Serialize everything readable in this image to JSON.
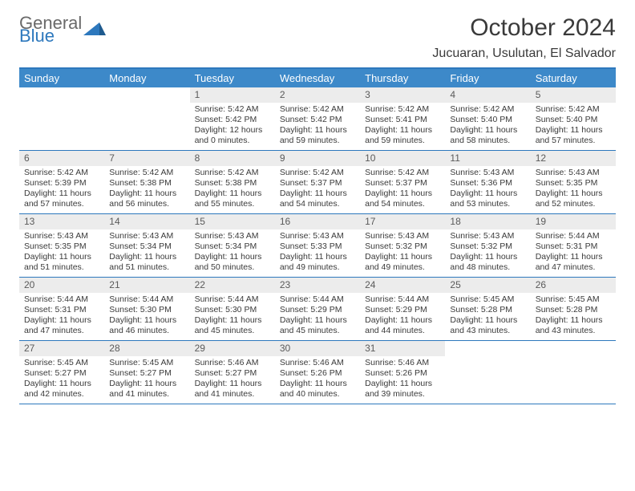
{
  "brand": {
    "top": "General",
    "bottom": "Blue"
  },
  "title": "October 2024",
  "location": "Jucuaran, Usulutan, El Salvador",
  "colors": {
    "header_bar": "#3d89c9",
    "accent": "#2d78bd",
    "day_num_bg": "#ececec",
    "text": "#3a3a3a",
    "logo_gray": "#6a6a6a"
  },
  "weekdays": [
    "Sunday",
    "Monday",
    "Tuesday",
    "Wednesday",
    "Thursday",
    "Friday",
    "Saturday"
  ],
  "weeks": [
    [
      {
        "n": "",
        "sr": "",
        "ss": "",
        "d1": "",
        "d2": ""
      },
      {
        "n": "",
        "sr": "",
        "ss": "",
        "d1": "",
        "d2": ""
      },
      {
        "n": "1",
        "sr": "Sunrise: 5:42 AM",
        "ss": "Sunset: 5:42 PM",
        "d1": "Daylight: 12 hours",
        "d2": "and 0 minutes."
      },
      {
        "n": "2",
        "sr": "Sunrise: 5:42 AM",
        "ss": "Sunset: 5:42 PM",
        "d1": "Daylight: 11 hours",
        "d2": "and 59 minutes."
      },
      {
        "n": "3",
        "sr": "Sunrise: 5:42 AM",
        "ss": "Sunset: 5:41 PM",
        "d1": "Daylight: 11 hours",
        "d2": "and 59 minutes."
      },
      {
        "n": "4",
        "sr": "Sunrise: 5:42 AM",
        "ss": "Sunset: 5:40 PM",
        "d1": "Daylight: 11 hours",
        "d2": "and 58 minutes."
      },
      {
        "n": "5",
        "sr": "Sunrise: 5:42 AM",
        "ss": "Sunset: 5:40 PM",
        "d1": "Daylight: 11 hours",
        "d2": "and 57 minutes."
      }
    ],
    [
      {
        "n": "6",
        "sr": "Sunrise: 5:42 AM",
        "ss": "Sunset: 5:39 PM",
        "d1": "Daylight: 11 hours",
        "d2": "and 57 minutes."
      },
      {
        "n": "7",
        "sr": "Sunrise: 5:42 AM",
        "ss": "Sunset: 5:38 PM",
        "d1": "Daylight: 11 hours",
        "d2": "and 56 minutes."
      },
      {
        "n": "8",
        "sr": "Sunrise: 5:42 AM",
        "ss": "Sunset: 5:38 PM",
        "d1": "Daylight: 11 hours",
        "d2": "and 55 minutes."
      },
      {
        "n": "9",
        "sr": "Sunrise: 5:42 AM",
        "ss": "Sunset: 5:37 PM",
        "d1": "Daylight: 11 hours",
        "d2": "and 54 minutes."
      },
      {
        "n": "10",
        "sr": "Sunrise: 5:42 AM",
        "ss": "Sunset: 5:37 PM",
        "d1": "Daylight: 11 hours",
        "d2": "and 54 minutes."
      },
      {
        "n": "11",
        "sr": "Sunrise: 5:43 AM",
        "ss": "Sunset: 5:36 PM",
        "d1": "Daylight: 11 hours",
        "d2": "and 53 minutes."
      },
      {
        "n": "12",
        "sr": "Sunrise: 5:43 AM",
        "ss": "Sunset: 5:35 PM",
        "d1": "Daylight: 11 hours",
        "d2": "and 52 minutes."
      }
    ],
    [
      {
        "n": "13",
        "sr": "Sunrise: 5:43 AM",
        "ss": "Sunset: 5:35 PM",
        "d1": "Daylight: 11 hours",
        "d2": "and 51 minutes."
      },
      {
        "n": "14",
        "sr": "Sunrise: 5:43 AM",
        "ss": "Sunset: 5:34 PM",
        "d1": "Daylight: 11 hours",
        "d2": "and 51 minutes."
      },
      {
        "n": "15",
        "sr": "Sunrise: 5:43 AM",
        "ss": "Sunset: 5:34 PM",
        "d1": "Daylight: 11 hours",
        "d2": "and 50 minutes."
      },
      {
        "n": "16",
        "sr": "Sunrise: 5:43 AM",
        "ss": "Sunset: 5:33 PM",
        "d1": "Daylight: 11 hours",
        "d2": "and 49 minutes."
      },
      {
        "n": "17",
        "sr": "Sunrise: 5:43 AM",
        "ss": "Sunset: 5:32 PM",
        "d1": "Daylight: 11 hours",
        "d2": "and 49 minutes."
      },
      {
        "n": "18",
        "sr": "Sunrise: 5:43 AM",
        "ss": "Sunset: 5:32 PM",
        "d1": "Daylight: 11 hours",
        "d2": "and 48 minutes."
      },
      {
        "n": "19",
        "sr": "Sunrise: 5:44 AM",
        "ss": "Sunset: 5:31 PM",
        "d1": "Daylight: 11 hours",
        "d2": "and 47 minutes."
      }
    ],
    [
      {
        "n": "20",
        "sr": "Sunrise: 5:44 AM",
        "ss": "Sunset: 5:31 PM",
        "d1": "Daylight: 11 hours",
        "d2": "and 47 minutes."
      },
      {
        "n": "21",
        "sr": "Sunrise: 5:44 AM",
        "ss": "Sunset: 5:30 PM",
        "d1": "Daylight: 11 hours",
        "d2": "and 46 minutes."
      },
      {
        "n": "22",
        "sr": "Sunrise: 5:44 AM",
        "ss": "Sunset: 5:30 PM",
        "d1": "Daylight: 11 hours",
        "d2": "and 45 minutes."
      },
      {
        "n": "23",
        "sr": "Sunrise: 5:44 AM",
        "ss": "Sunset: 5:29 PM",
        "d1": "Daylight: 11 hours",
        "d2": "and 45 minutes."
      },
      {
        "n": "24",
        "sr": "Sunrise: 5:44 AM",
        "ss": "Sunset: 5:29 PM",
        "d1": "Daylight: 11 hours",
        "d2": "and 44 minutes."
      },
      {
        "n": "25",
        "sr": "Sunrise: 5:45 AM",
        "ss": "Sunset: 5:28 PM",
        "d1": "Daylight: 11 hours",
        "d2": "and 43 minutes."
      },
      {
        "n": "26",
        "sr": "Sunrise: 5:45 AM",
        "ss": "Sunset: 5:28 PM",
        "d1": "Daylight: 11 hours",
        "d2": "and 43 minutes."
      }
    ],
    [
      {
        "n": "27",
        "sr": "Sunrise: 5:45 AM",
        "ss": "Sunset: 5:27 PM",
        "d1": "Daylight: 11 hours",
        "d2": "and 42 minutes."
      },
      {
        "n": "28",
        "sr": "Sunrise: 5:45 AM",
        "ss": "Sunset: 5:27 PM",
        "d1": "Daylight: 11 hours",
        "d2": "and 41 minutes."
      },
      {
        "n": "29",
        "sr": "Sunrise: 5:46 AM",
        "ss": "Sunset: 5:27 PM",
        "d1": "Daylight: 11 hours",
        "d2": "and 41 minutes."
      },
      {
        "n": "30",
        "sr": "Sunrise: 5:46 AM",
        "ss": "Sunset: 5:26 PM",
        "d1": "Daylight: 11 hours",
        "d2": "and 40 minutes."
      },
      {
        "n": "31",
        "sr": "Sunrise: 5:46 AM",
        "ss": "Sunset: 5:26 PM",
        "d1": "Daylight: 11 hours",
        "d2": "and 39 minutes."
      },
      {
        "n": "",
        "sr": "",
        "ss": "",
        "d1": "",
        "d2": ""
      },
      {
        "n": "",
        "sr": "",
        "ss": "",
        "d1": "",
        "d2": ""
      }
    ]
  ]
}
